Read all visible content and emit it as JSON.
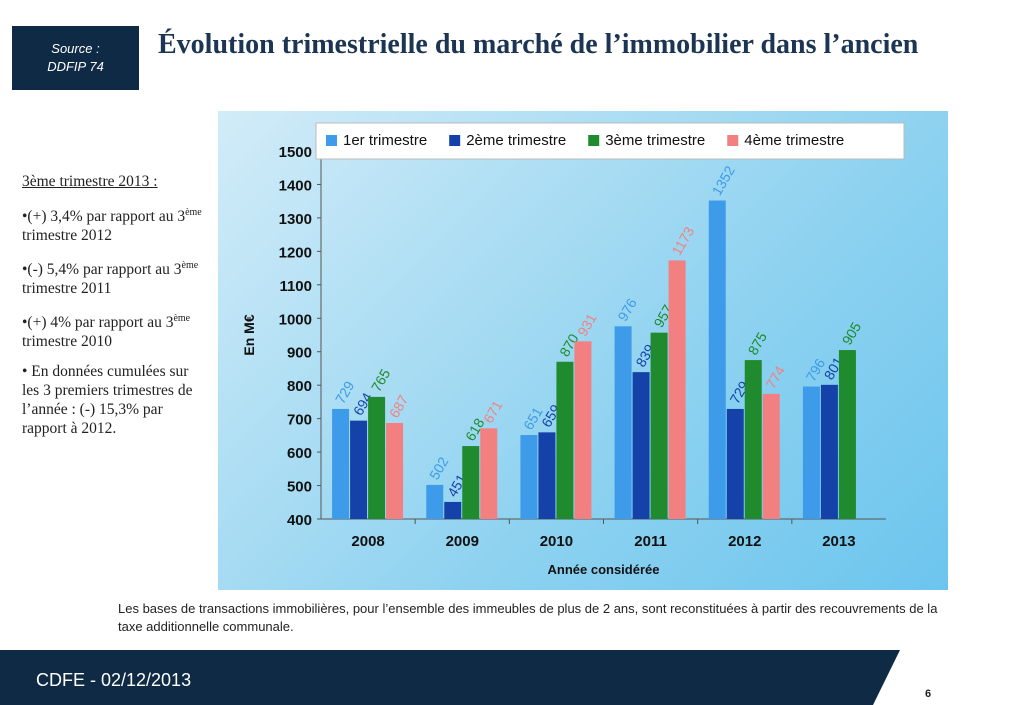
{
  "source": {
    "line1": "Source :",
    "line2": "DDFIP 74"
  },
  "title": "Évolution trimestrielle du marché de l’immobilier dans l’ancien",
  "sidebar": {
    "heading": "3ème trimestre 2013 :",
    "points": [
      {
        "pre": "•(+) 3,4% par rapport au 3",
        "sup": "ème",
        "post": " trimestre 2012"
      },
      {
        "pre": "•(-) 5,4% par rapport au 3",
        "sup": "ème",
        "post": " trimestre 2011"
      },
      {
        "pre": "•(+) 4% par rapport au 3",
        "sup": "ème",
        "post": " trimestre 2010"
      },
      {
        "pre": "• En données cumulées sur les 3 premiers trimestres de l’année : (-) 15,3% par rapport à 2012.",
        "sup": "",
        "post": ""
      }
    ]
  },
  "chart_data": {
    "type": "bar",
    "categories": [
      "2008",
      "2009",
      "2010",
      "2011",
      "2012",
      "2013"
    ],
    "series": [
      {
        "name": "1er trimestre",
        "color": "#3d9be9",
        "values": [
          729,
          502,
          651,
          976,
          1352,
          796
        ]
      },
      {
        "name": "2ème trimestre",
        "color": "#1542a8",
        "values": [
          694,
          451,
          659,
          839,
          729,
          801
        ]
      },
      {
        "name": "3ème trimestre",
        "color": "#1f8a2e",
        "values": [
          765,
          618,
          870,
          957,
          875,
          905
        ]
      },
      {
        "name": "4ème trimestre",
        "color": "#f28080",
        "values": [
          687,
          671,
          931,
          1173,
          774,
          null
        ]
      }
    ],
    "ylabel": "En M€",
    "xlabel": "Année considérée",
    "ylim": [
      400,
      1500
    ],
    "yticks": [
      400,
      500,
      600,
      700,
      800,
      900,
      1000,
      1100,
      1200,
      1300,
      1400,
      1500
    ],
    "legend": "top"
  },
  "footnote": "Les bases de transactions immobilières, pour l’ensemble des immeubles de plus de 2 ans, sont reconstituées à partir des recouvrements de la taxe additionnelle communale.",
  "footer": {
    "text": "CDFE - 02/12/2013",
    "page": "6"
  }
}
